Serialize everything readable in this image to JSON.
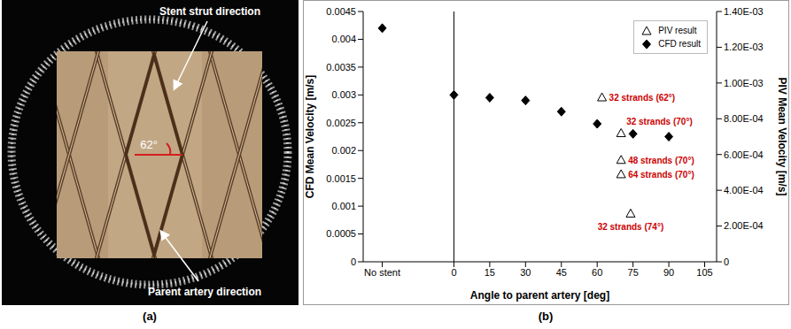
{
  "image_panel": {
    "label": "(a)",
    "annotations": [
      "Stent strut direction",
      "Parent artery direction"
    ],
    "angle_label": "62°"
  },
  "chart_data": {
    "type": "scatter",
    "panel_label": "(b)",
    "x_label": "Angle to parent artery [deg]",
    "y_label": "CFD Mean Velocity [m/s]",
    "y2_label": "PIV Mean Velocity [m/s]",
    "xlim": [
      -38,
      110
    ],
    "xticks": [
      {
        "value": -30,
        "label": "No stent"
      },
      0,
      15,
      30,
      45,
      60,
      75,
      90,
      105
    ],
    "ylim": [
      0,
      0.0045
    ],
    "yticks": [
      0,
      0.0005,
      0.001,
      0.0015,
      0.002,
      0.0025,
      0.003,
      0.0035,
      0.004,
      0.0045
    ],
    "y2lim": [
      0,
      0.0014
    ],
    "y2ticks": [
      0,
      {
        "value": 0.0002,
        "label": "2.00E-04"
      },
      {
        "value": 0.0004,
        "label": "4.00E-04"
      },
      {
        "value": 0.0006,
        "label": "6.00E-04"
      },
      {
        "value": 0.0008,
        "label": "8.00E-04"
      },
      {
        "value": 0.001,
        "label": "1.00E-03"
      },
      {
        "value": 0.0012,
        "label": "1.20E-03"
      },
      {
        "value": 0.0014,
        "label": "1.40E-03"
      }
    ],
    "legend": "upper right",
    "grid": false,
    "series": [
      {
        "name": "PIV result",
        "marker": "open_triangle",
        "color": "#000000",
        "axis": "y2",
        "x": [
          62,
          70,
          70,
          70,
          74
        ],
        "values": [
          0.00092,
          0.00072,
          0.00057,
          0.00049,
          0.00027
        ],
        "point_labels": [
          "32 strands (62°)",
          "32 strands (70°)",
          "48 strands (70°)",
          "64 strands (70°)",
          "32 strands (74°)"
        ]
      },
      {
        "name": "CFD result",
        "marker": "diamond",
        "color": "#000000",
        "x": [
          -30,
          0,
          15,
          30,
          45,
          60,
          75,
          90
        ],
        "values": [
          0.0042,
          0.003,
          0.00295,
          0.0029,
          0.0027,
          0.00248,
          0.0023,
          0.00225
        ]
      }
    ]
  }
}
